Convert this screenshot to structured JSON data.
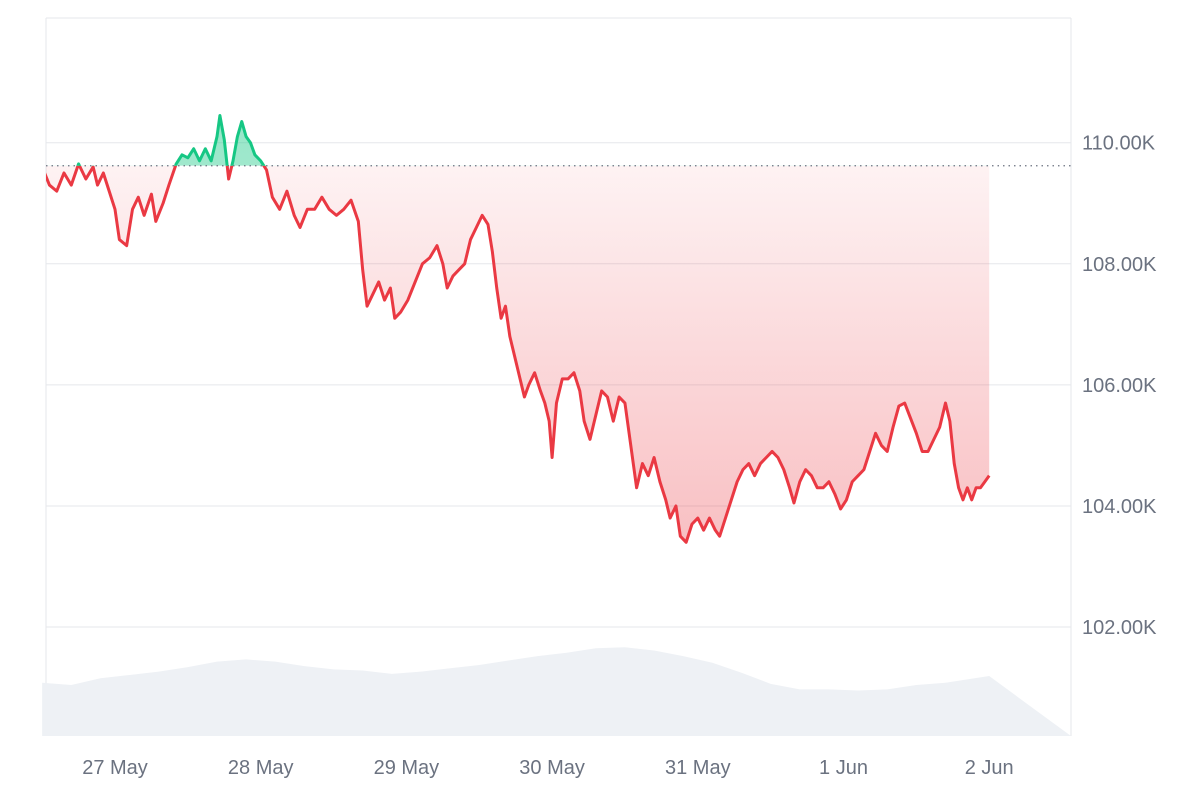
{
  "chart_data": {
    "type": "area",
    "title": "",
    "xlabel": "",
    "ylabel": "",
    "ylim": [
      100200,
      112060
    ],
    "grid": true,
    "legend": "none",
    "baseline": 109620,
    "x_ticks": [
      "27 May",
      "28 May",
      "29 May",
      "30 May",
      "31 May",
      "1 Jun",
      "2 Jun"
    ],
    "y_ticks": [
      {
        "value": 102000,
        "label": "102.00K"
      },
      {
        "value": 104000,
        "label": "104.00K"
      },
      {
        "value": 106000,
        "label": "106.00K"
      },
      {
        "value": 108000,
        "label": "108.00K"
      },
      {
        "value": 110000,
        "label": "110.00K"
      }
    ],
    "colors": {
      "above": "#16c784",
      "below": "#ea3943",
      "grid": "#e5e7eb",
      "baseline": "#6b7280",
      "volume": "#eef1f5",
      "tick_text": "#6b7280"
    },
    "series": [
      {
        "values": [
          [
            0.0,
            109600
          ],
          [
            0.05,
            109300
          ],
          [
            0.1,
            109200
          ],
          [
            0.15,
            109500
          ],
          [
            0.2,
            109300
          ],
          [
            0.25,
            109650
          ],
          [
            0.3,
            109400
          ],
          [
            0.35,
            109600
          ],
          [
            0.38,
            109300
          ],
          [
            0.42,
            109500
          ],
          [
            0.46,
            109200
          ],
          [
            0.5,
            108900
          ],
          [
            0.53,
            108400
          ],
          [
            0.58,
            108300
          ],
          [
            0.62,
            108900
          ],
          [
            0.66,
            109100
          ],
          [
            0.7,
            108800
          ],
          [
            0.75,
            109150
          ],
          [
            0.78,
            108700
          ],
          [
            0.83,
            109000
          ],
          [
            0.87,
            109300
          ],
          [
            0.92,
            109650
          ],
          [
            0.96,
            109800
          ],
          [
            1.0,
            109750
          ],
          [
            1.04,
            109900
          ],
          [
            1.08,
            109700
          ],
          [
            1.12,
            109900
          ],
          [
            1.16,
            109700
          ],
          [
            1.2,
            110100
          ],
          [
            1.22,
            110450
          ],
          [
            1.25,
            110050
          ],
          [
            1.28,
            109400
          ],
          [
            1.31,
            109700
          ],
          [
            1.34,
            110100
          ],
          [
            1.37,
            110350
          ],
          [
            1.4,
            110100
          ],
          [
            1.43,
            110000
          ],
          [
            1.46,
            109800
          ],
          [
            1.5,
            109700
          ],
          [
            1.54,
            109550
          ],
          [
            1.58,
            109100
          ],
          [
            1.63,
            108900
          ],
          [
            1.68,
            109200
          ],
          [
            1.73,
            108800
          ],
          [
            1.77,
            108600
          ],
          [
            1.82,
            108900
          ],
          [
            1.87,
            108900
          ],
          [
            1.92,
            109100
          ],
          [
            1.97,
            108900
          ],
          [
            2.02,
            108800
          ],
          [
            2.07,
            108900
          ],
          [
            2.12,
            109050
          ],
          [
            2.17,
            108700
          ],
          [
            2.2,
            107900
          ],
          [
            2.23,
            107300
          ],
          [
            2.27,
            107500
          ],
          [
            2.31,
            107700
          ],
          [
            2.35,
            107400
          ],
          [
            2.39,
            107600
          ],
          [
            2.42,
            107100
          ],
          [
            2.46,
            107200
          ],
          [
            2.51,
            107400
          ],
          [
            2.56,
            107700
          ],
          [
            2.61,
            108000
          ],
          [
            2.66,
            108100
          ],
          [
            2.71,
            108300
          ],
          [
            2.75,
            108000
          ],
          [
            2.78,
            107600
          ],
          [
            2.82,
            107800
          ],
          [
            2.86,
            107900
          ],
          [
            2.9,
            108000
          ],
          [
            2.94,
            108400
          ],
          [
            2.98,
            108600
          ],
          [
            3.02,
            108800
          ],
          [
            3.06,
            108650
          ],
          [
            3.09,
            108200
          ],
          [
            3.12,
            107600
          ],
          [
            3.15,
            107100
          ],
          [
            3.18,
            107300
          ],
          [
            3.21,
            106800
          ],
          [
            3.25,
            106400
          ],
          [
            3.28,
            106100
          ],
          [
            3.31,
            105800
          ],
          [
            3.34,
            106000
          ],
          [
            3.38,
            106200
          ],
          [
            3.42,
            105900
          ],
          [
            3.45,
            105700
          ],
          [
            3.48,
            105400
          ],
          [
            3.5,
            104800
          ],
          [
            3.53,
            105700
          ],
          [
            3.57,
            106100
          ],
          [
            3.61,
            106100
          ],
          [
            3.65,
            106200
          ],
          [
            3.69,
            105900
          ],
          [
            3.72,
            105400
          ],
          [
            3.76,
            105100
          ],
          [
            3.8,
            105500
          ],
          [
            3.84,
            105900
          ],
          [
            3.88,
            105800
          ],
          [
            3.92,
            105400
          ],
          [
            3.96,
            105800
          ],
          [
            4.0,
            105700
          ],
          [
            4.04,
            105000
          ],
          [
            4.08,
            104300
          ],
          [
            4.12,
            104700
          ],
          [
            4.16,
            104500
          ],
          [
            4.2,
            104800
          ],
          [
            4.24,
            104400
          ],
          [
            4.28,
            104100
          ],
          [
            4.31,
            103800
          ],
          [
            4.35,
            104000
          ],
          [
            4.38,
            103500
          ],
          [
            4.42,
            103400
          ],
          [
            4.46,
            103700
          ],
          [
            4.5,
            103800
          ],
          [
            4.54,
            103600
          ],
          [
            4.58,
            103800
          ],
          [
            4.62,
            103600
          ],
          [
            4.65,
            103500
          ],
          [
            4.69,
            103800
          ],
          [
            4.73,
            104100
          ],
          [
            4.77,
            104400
          ],
          [
            4.81,
            104600
          ],
          [
            4.85,
            104700
          ],
          [
            4.89,
            104500
          ],
          [
            4.93,
            104700
          ],
          [
            4.97,
            104800
          ],
          [
            5.01,
            104900
          ],
          [
            5.05,
            104800
          ],
          [
            5.09,
            104600
          ],
          [
            5.13,
            104300
          ],
          [
            5.16,
            104050
          ],
          [
            5.2,
            104400
          ],
          [
            5.24,
            104600
          ],
          [
            5.28,
            104500
          ],
          [
            5.32,
            104300
          ],
          [
            5.36,
            104300
          ],
          [
            5.4,
            104400
          ],
          [
            5.44,
            104200
          ],
          [
            5.48,
            103950
          ],
          [
            5.52,
            104100
          ],
          [
            5.56,
            104400
          ],
          [
            5.6,
            104500
          ],
          [
            5.64,
            104600
          ],
          [
            5.68,
            104900
          ],
          [
            5.72,
            105200
          ],
          [
            5.76,
            105000
          ],
          [
            5.8,
            104900
          ],
          [
            5.84,
            105300
          ],
          [
            5.88,
            105650
          ],
          [
            5.92,
            105700
          ],
          [
            5.96,
            105450
          ],
          [
            6.0,
            105200
          ],
          [
            6.04,
            104900
          ],
          [
            6.08,
            104900
          ],
          [
            6.12,
            105100
          ],
          [
            6.16,
            105300
          ],
          [
            6.2,
            105700
          ],
          [
            6.23,
            105400
          ],
          [
            6.26,
            104700
          ],
          [
            6.29,
            104300
          ],
          [
            6.32,
            104100
          ],
          [
            6.35,
            104300
          ],
          [
            6.38,
            104100
          ],
          [
            6.41,
            104300
          ],
          [
            6.44,
            104300
          ],
          [
            6.47,
            104400
          ],
          [
            6.5,
            104500
          ]
        ]
      }
    ],
    "volume": [
      [
        0.0,
        0.48
      ],
      [
        0.2,
        0.46
      ],
      [
        0.4,
        0.52
      ],
      [
        0.6,
        0.55
      ],
      [
        0.8,
        0.58
      ],
      [
        1.0,
        0.62
      ],
      [
        1.2,
        0.67
      ],
      [
        1.4,
        0.69
      ],
      [
        1.6,
        0.67
      ],
      [
        1.8,
        0.63
      ],
      [
        2.0,
        0.6
      ],
      [
        2.2,
        0.59
      ],
      [
        2.4,
        0.56
      ],
      [
        2.6,
        0.58
      ],
      [
        2.8,
        0.61
      ],
      [
        3.0,
        0.64
      ],
      [
        3.2,
        0.68
      ],
      [
        3.4,
        0.72
      ],
      [
        3.6,
        0.75
      ],
      [
        3.8,
        0.79
      ],
      [
        4.0,
        0.8
      ],
      [
        4.2,
        0.77
      ],
      [
        4.4,
        0.72
      ],
      [
        4.6,
        0.66
      ],
      [
        4.8,
        0.57
      ],
      [
        5.0,
        0.47
      ],
      [
        5.2,
        0.42
      ],
      [
        5.4,
        0.42
      ],
      [
        5.6,
        0.41
      ],
      [
        5.8,
        0.42
      ],
      [
        6.0,
        0.46
      ],
      [
        6.2,
        0.48
      ],
      [
        6.4,
        0.52
      ],
      [
        6.5,
        0.54
      ]
    ]
  }
}
